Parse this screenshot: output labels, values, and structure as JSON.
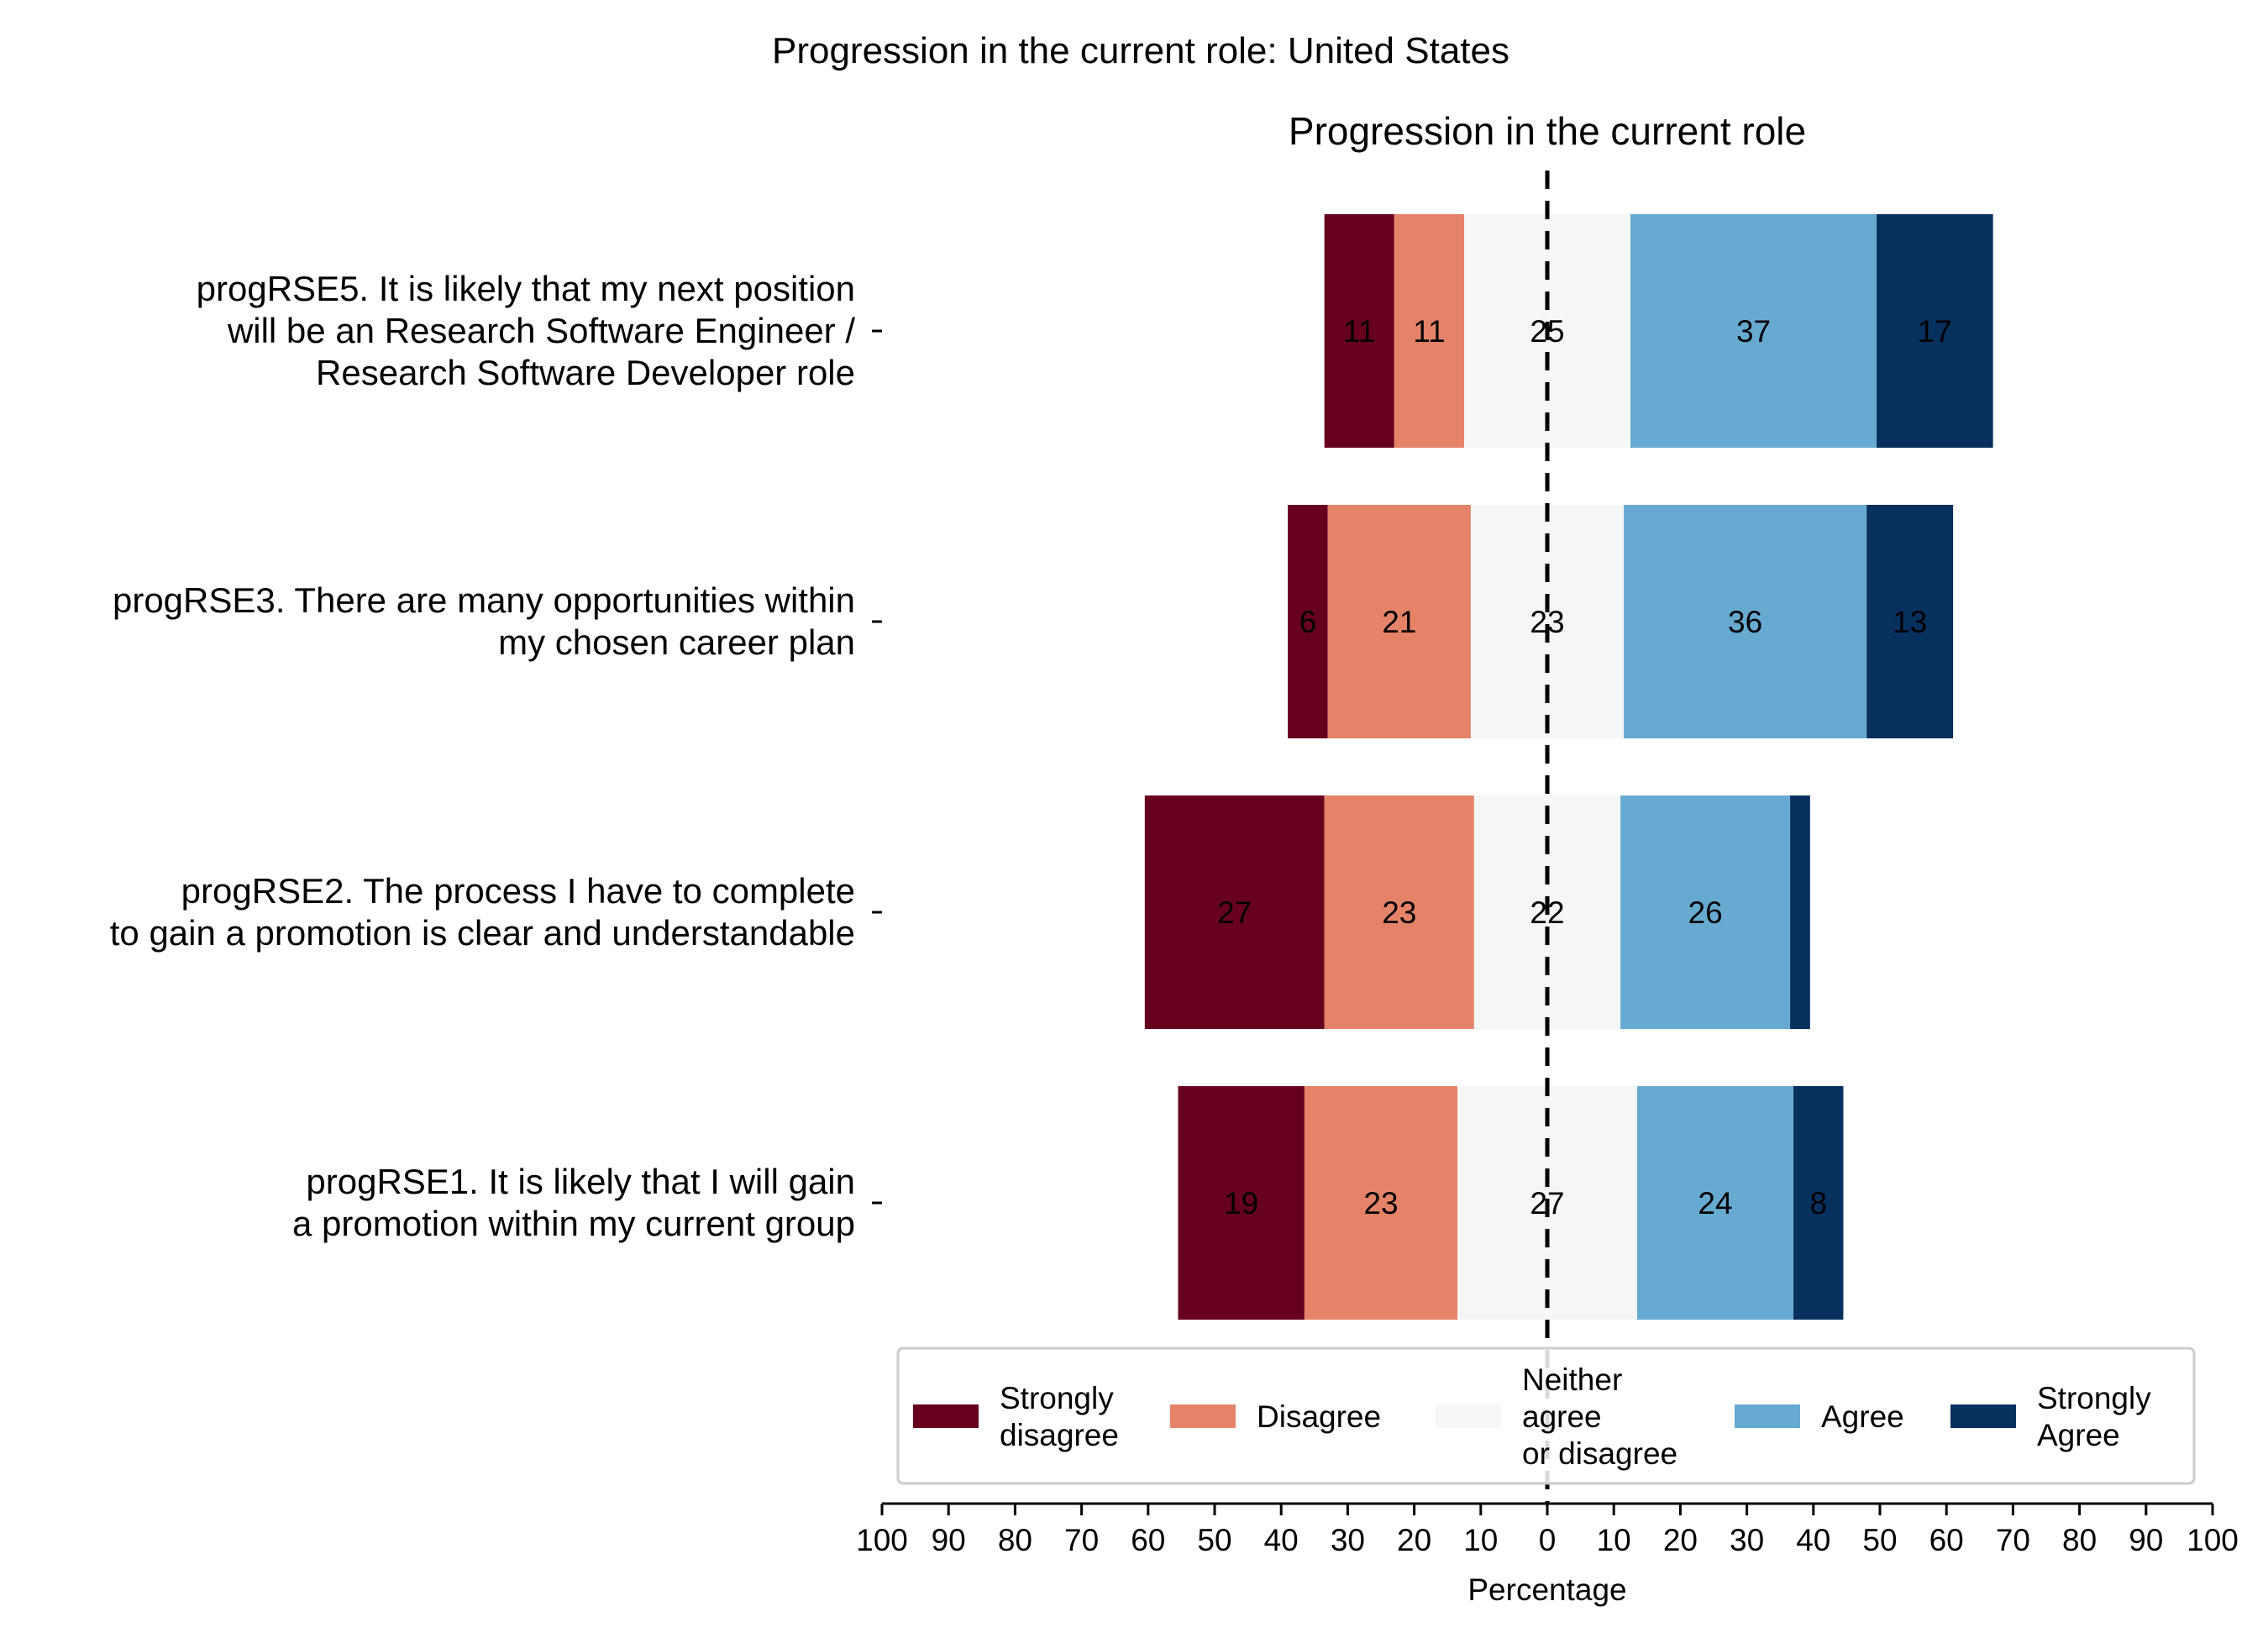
{
  "chart_data": {
    "type": "bar",
    "orientation": "horizontal-diverging-stacked",
    "suptitle": "Progression in the current role: United States",
    "title": "Progression in the current role",
    "xlabel": "Percentage",
    "xlim": [
      -100,
      100
    ],
    "xticks": [
      -100,
      -90,
      -80,
      -70,
      -60,
      -50,
      -40,
      -30,
      -20,
      -10,
      0,
      10,
      20,
      30,
      40,
      50,
      60,
      70,
      80,
      90,
      100
    ],
    "xtick_labels": [
      "100",
      "90",
      "80",
      "70",
      "60",
      "50",
      "40",
      "30",
      "20",
      "10",
      "0",
      "10",
      "20",
      "30",
      "40",
      "50",
      "60",
      "70",
      "80",
      "90",
      "100"
    ],
    "categories": [
      [
        "progRSE5. It is likely that my next position",
        "will be an Research Software Engineer /",
        "Research Software Developer role"
      ],
      [
        "progRSE3. There are many opportunities within",
        "my chosen career plan"
      ],
      [
        "progRSE2. The process I have to complete",
        "to gain a promotion is clear and understandable"
      ],
      [
        "progRSE1. It is likely that I will gain",
        "a promotion within my current group"
      ]
    ],
    "series": [
      {
        "name": "Strongly disagree",
        "legend_lines": [
          "Strongly",
          "disagree"
        ],
        "color": "#67001f",
        "values": [
          10.5,
          6.0,
          27.0,
          19.0
        ],
        "labels": [
          "11",
          "6",
          "27",
          "19"
        ]
      },
      {
        "name": "Disagree",
        "legend_lines": [
          "Disagree"
        ],
        "color": "#e58368",
        "values": [
          10.5,
          21.5,
          22.5,
          23.0
        ],
        "labels": [
          "11",
          "21",
          "23",
          "23"
        ]
      },
      {
        "name": "Neither agree or disagree",
        "legend_lines": [
          "Neither",
          "agree",
          "or disagree"
        ],
        "color": "#f5f6f6",
        "values": [
          25.0,
          23.0,
          22.0,
          27.0
        ],
        "labels": [
          "25",
          "23",
          "22",
          "27"
        ]
      },
      {
        "name": "Agree",
        "legend_lines": [
          "Agree"
        ],
        "color": "#67aad1",
        "values": [
          37.0,
          36.5,
          25.5,
          23.5
        ],
        "labels": [
          "37",
          "36",
          "26",
          "24"
        ]
      },
      {
        "name": "Strongly Agree",
        "legend_lines": [
          "Strongly",
          "Agree"
        ],
        "color": "#08305f",
        "values": [
          17.5,
          13.0,
          3.0,
          7.5
        ],
        "labels": [
          "17",
          "13",
          "",
          "8"
        ]
      }
    ],
    "legend_position": "bottom-center",
    "grid": false,
    "center_line": "dashed"
  }
}
